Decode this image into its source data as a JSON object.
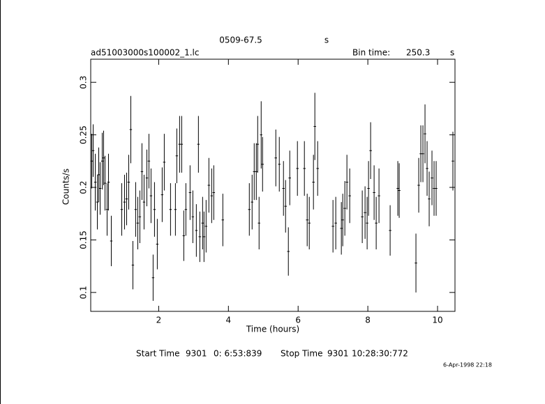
{
  "chart_data": {
    "type": "scatter",
    "title": "0509-67.5",
    "title_unit": "s",
    "subtitle": "ad51003000s100002_1.lc",
    "bin_time_label": "Bin time:",
    "bin_time": 250.3,
    "bin_time_unit": "s",
    "xlabel": "Time (hours)",
    "ylabel": "Counts/s",
    "start_label": "Start Time",
    "start_day": 9301,
    "start_time": "0: 6:53:839",
    "stop_label": "Stop Time",
    "stop_day": 9301,
    "stop_time": "10:28:30:772",
    "timestamp": "6-Apr-1998 22:18",
    "color": "#000000",
    "xlim": [
      0.05,
      10.5
    ],
    "ylim": [
      0.082,
      0.322
    ],
    "xticks": [
      2,
      4,
      6,
      8,
      10
    ],
    "yticks": [
      0.1,
      0.15,
      0.2,
      0.25,
      0.3
    ],
    "x": [
      0.08,
      0.12,
      0.18,
      0.24,
      0.28,
      0.32,
      0.38,
      0.42,
      0.46,
      0.52,
      0.56,
      0.64,
      0.94,
      1.02,
      1.08,
      1.14,
      1.2,
      1.26,
      1.34,
      1.4,
      1.46,
      1.52,
      1.58,
      1.66,
      1.72,
      1.78,
      1.84,
      1.88,
      1.96,
      2.1,
      2.16,
      2.34,
      2.48,
      2.52,
      2.6,
      2.66,
      2.72,
      2.78,
      2.9,
      2.98,
      3.08,
      3.14,
      3.18,
      3.26,
      3.3,
      3.36,
      3.44,
      3.52,
      3.58,
      3.84,
      4.6,
      4.68,
      4.74,
      4.8,
      4.84,
      4.88,
      4.94,
      4.98,
      5.36,
      5.46,
      5.58,
      5.64,
      5.72,
      5.76,
      5.98,
      6.18,
      6.26,
      6.32,
      6.44,
      6.48,
      6.56,
      7.0,
      7.08,
      7.24,
      7.28,
      7.34,
      7.4,
      7.48,
      7.84,
      7.92,
      7.98,
      8.02,
      8.08,
      8.18,
      8.24,
      8.32,
      8.64,
      8.86,
      8.9,
      9.38,
      9.46,
      9.52,
      9.58,
      9.64,
      9.7,
      9.76,
      9.84,
      9.9,
      9.96,
      10.44
    ],
    "values": [
      0.225,
      0.235,
      0.205,
      0.186,
      0.212,
      0.199,
      0.225,
      0.228,
      0.204,
      0.179,
      0.205,
      0.149,
      0.179,
      0.186,
      0.189,
      0.205,
      0.255,
      0.126,
      0.179,
      0.166,
      0.172,
      0.215,
      0.186,
      0.209,
      0.225,
      0.192,
      0.114,
      0.179,
      0.146,
      0.193,
      0.224,
      0.179,
      0.179,
      0.23,
      0.241,
      0.241,
      0.154,
      0.179,
      0.195,
      0.172,
      0.159,
      0.241,
      0.153,
      0.166,
      0.153,
      0.163,
      0.202,
      0.192,
      0.195,
      0.169,
      0.179,
      0.186,
      0.215,
      0.215,
      0.241,
      0.166,
      0.25,
      0.222,
      0.228,
      0.222,
      0.199,
      0.182,
      0.139,
      0.209,
      0.218,
      0.218,
      0.169,
      0.166,
      0.205,
      0.258,
      0.218,
      0.163,
      0.166,
      0.161,
      0.169,
      0.18,
      0.205,
      0.192,
      0.172,
      0.176,
      0.166,
      0.199,
      0.235,
      0.195,
      0.166,
      0.192,
      0.159,
      0.199,
      0.197,
      0.128,
      0.202,
      0.232,
      0.232,
      0.251,
      0.218,
      0.189,
      0.209,
      0.199,
      0.199,
      0.225
    ],
    "errors": [
      0.026,
      0.025,
      0.027,
      0.026,
      0.026,
      0.025,
      0.027,
      0.026,
      0.026,
      0.025,
      0.027,
      0.024,
      0.025,
      0.026,
      0.025,
      0.026,
      0.032,
      0.023,
      0.026,
      0.025,
      0.025,
      0.027,
      0.026,
      0.027,
      0.026,
      0.026,
      0.022,
      0.026,
      0.024,
      0.026,
      0.027,
      0.025,
      0.025,
      0.026,
      0.027,
      0.027,
      0.024,
      0.025,
      0.026,
      0.025,
      0.025,
      0.027,
      0.024,
      0.025,
      0.024,
      0.025,
      0.026,
      0.026,
      0.026,
      0.025,
      0.025,
      0.026,
      0.027,
      0.027,
      0.027,
      0.025,
      0.032,
      0.026,
      0.027,
      0.026,
      0.026,
      0.025,
      0.023,
      0.026,
      0.026,
      0.026,
      0.025,
      0.025,
      0.026,
      0.032,
      0.026,
      0.025,
      0.025,
      0.025,
      0.025,
      0.026,
      0.026,
      0.026,
      0.025,
      0.025,
      0.025,
      0.026,
      0.027,
      0.026,
      0.025,
      0.026,
      0.024,
      0.026,
      0.026,
      0.028,
      0.026,
      0.027,
      0.027,
      0.028,
      0.026,
      0.026,
      0.026,
      0.026,
      0.026,
      0.028
    ]
  }
}
